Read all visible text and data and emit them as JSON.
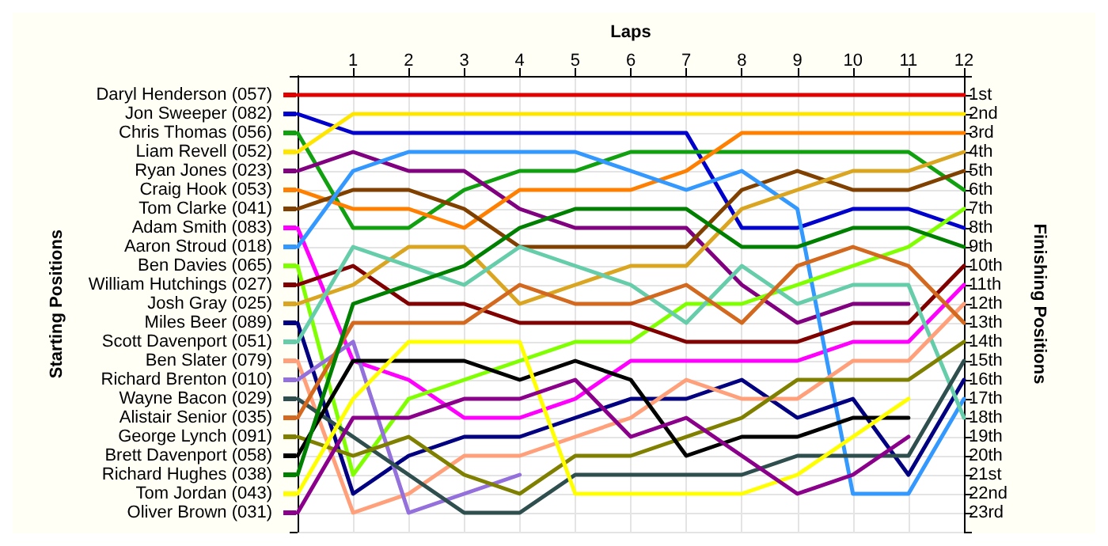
{
  "chart_data": {
    "type": "line",
    "xlabel": "Laps",
    "annotations": [
      "Starting Positions"
    ],
    "y2label": "Finishing Positions",
    "x": [
      0,
      1,
      2,
      3,
      4,
      5,
      6,
      7,
      8,
      9,
      10,
      11,
      12
    ],
    "xlim": [
      0,
      12
    ],
    "xticks": [
      1,
      2,
      3,
      4,
      5,
      6,
      7,
      8,
      9,
      10,
      11,
      12
    ],
    "ylim": [
      24,
      0
    ],
    "yticks": [
      {
        "value": 0,
        "label": null
      },
      {
        "value": 1,
        "label": "1st"
      },
      {
        "value": 2,
        "label": "2nd"
      },
      {
        "value": 3,
        "label": "3rd"
      },
      {
        "value": 4,
        "label": "4th"
      },
      {
        "value": 5,
        "label": "5th"
      },
      {
        "value": 6,
        "label": "6th"
      },
      {
        "value": 7,
        "label": "7th"
      },
      {
        "value": 8,
        "label": "8th"
      },
      {
        "value": 9,
        "label": "9th"
      },
      {
        "value": 10,
        "label": "10th"
      },
      {
        "value": 11,
        "label": "11th"
      },
      {
        "value": 12,
        "label": "12th"
      },
      {
        "value": 13,
        "label": "13th"
      },
      {
        "value": 14,
        "label": "14th"
      },
      {
        "value": 15,
        "label": "15th"
      },
      {
        "value": 16,
        "label": "16th"
      },
      {
        "value": 17,
        "label": "17th"
      },
      {
        "value": 18,
        "label": "18th"
      },
      {
        "value": 19,
        "label": "19th"
      },
      {
        "value": 20,
        "label": "20th"
      },
      {
        "value": 21,
        "label": "21st"
      },
      {
        "value": 22,
        "label": "22nd"
      },
      {
        "value": 23,
        "label": "23rd"
      },
      {
        "value": 24,
        "label": null
      }
    ],
    "grid": true,
    "legend": "left",
    "marker": "none",
    "line_style": "solid",
    "series": [
      {
        "name": "Daryl Henderson (057)",
        "color": "#e00000",
        "values": [
          1,
          1,
          1,
          1,
          1,
          1,
          1,
          1,
          1,
          1,
          1,
          1,
          1
        ]
      },
      {
        "name": "Jon Sweeper (082)",
        "color": "#0000cc",
        "values": [
          2,
          3,
          3,
          3,
          3,
          3,
          3,
          3,
          8,
          8,
          7,
          7,
          8
        ]
      },
      {
        "name": "Chris Thomas (056)",
        "color": "#10a010",
        "values": [
          3,
          8,
          8,
          6,
          5,
          5,
          4,
          4,
          4,
          4,
          4,
          4,
          6
        ]
      },
      {
        "name": "Liam Revell (052)",
        "color": "#ffe600",
        "values": [
          4,
          2,
          2,
          2,
          2,
          2,
          2,
          2,
          2,
          2,
          2,
          2,
          2
        ]
      },
      {
        "name": "Ryan Jones (023)",
        "color": "#800080",
        "values": [
          5,
          4,
          5,
          5,
          7,
          8,
          8,
          8,
          11,
          13,
          12,
          12,
          null
        ]
      },
      {
        "name": "Craig Hook (053)",
        "color": "#ff8000",
        "values": [
          6,
          7,
          7,
          8,
          6,
          6,
          6,
          5,
          3,
          3,
          3,
          3,
          3
        ]
      },
      {
        "name": "Tom Clarke (041)",
        "color": "#804000",
        "values": [
          7,
          6,
          6,
          7,
          9,
          9,
          9,
          9,
          6,
          5,
          6,
          6,
          5
        ]
      },
      {
        "name": "Adam Smith (083)",
        "color": "#ff00ff",
        "values": [
          8,
          15,
          16,
          18,
          18,
          17,
          15,
          15,
          15,
          15,
          14,
          14,
          11
        ]
      },
      {
        "name": "Aaron Stroud (018)",
        "color": "#3399ff",
        "values": [
          9,
          5,
          4,
          4,
          4,
          4,
          5,
          6,
          5,
          7,
          22,
          22,
          17
        ]
      },
      {
        "name": "Ben Davies (065)",
        "color": "#80ff00",
        "values": [
          10,
          21,
          17,
          16,
          15,
          14,
          14,
          12,
          12,
          11,
          10,
          9,
          7
        ]
      },
      {
        "name": "William Hutchings (027)",
        "color": "#800000",
        "values": [
          11,
          10,
          12,
          12,
          13,
          13,
          13,
          14,
          14,
          14,
          13,
          13,
          10
        ]
      },
      {
        "name": "Josh Gray (025)",
        "color": "#daa520",
        "values": [
          12,
          11,
          9,
          9,
          12,
          11,
          10,
          10,
          7,
          6,
          5,
          5,
          4
        ]
      },
      {
        "name": "Miles Beer (089)",
        "color": "#000080",
        "values": [
          13,
          22,
          20,
          19,
          19,
          18,
          17,
          17,
          16,
          18,
          17,
          21,
          16
        ]
      },
      {
        "name": "Scott Davenport (051)",
        "color": "#66cdaa",
        "values": [
          14,
          9,
          10,
          11,
          9,
          10,
          11,
          13,
          10,
          12,
          11,
          11,
          18
        ]
      },
      {
        "name": "Ben Slater (079)",
        "color": "#ffa07a",
        "values": [
          15,
          23,
          22,
          20,
          20,
          19,
          18,
          16,
          17,
          17,
          15,
          15,
          12
        ]
      },
      {
        "name": "Richard Brenton (010)",
        "color": "#9370db",
        "values": [
          16,
          14,
          23,
          22,
          21,
          null,
          null,
          null,
          null,
          null,
          null,
          null,
          null
        ]
      },
      {
        "name": "Wayne Bacon (029)",
        "color": "#2f4f4f",
        "values": [
          17,
          19,
          21,
          23,
          23,
          21,
          21,
          21,
          21,
          20,
          20,
          20,
          15
        ]
      },
      {
        "name": "Alistair Senior (035)",
        "color": "#d2691e",
        "values": [
          18,
          13,
          13,
          13,
          11,
          12,
          12,
          11,
          13,
          10,
          9,
          10,
          13
        ]
      },
      {
        "name": "George Lynch (091)",
        "color": "#808000",
        "values": [
          19,
          20,
          19,
          21,
          22,
          20,
          20,
          19,
          18,
          16,
          16,
          16,
          14
        ]
      },
      {
        "name": "Brett Davenport (058)",
        "color": "#000000",
        "values": [
          20,
          15,
          15,
          15,
          16,
          15,
          16,
          20,
          19,
          19,
          18,
          18,
          null
        ]
      },
      {
        "name": "Richard Hughes (038)",
        "color": "#008000",
        "values": [
          21,
          12,
          11,
          10,
          8,
          7,
          7,
          7,
          9,
          9,
          8,
          8,
          9
        ]
      },
      {
        "name": "Tom Jordan (043)",
        "color": "#ffff00",
        "values": [
          22,
          17,
          14,
          14,
          14,
          22,
          22,
          22,
          22,
          21,
          19,
          17,
          null
        ]
      },
      {
        "name": "Oliver Brown (031)",
        "color": "#8b008b",
        "values": [
          23,
          18,
          18,
          17,
          17,
          16,
          19,
          18,
          20,
          22,
          21,
          19,
          null
        ]
      }
    ]
  }
}
